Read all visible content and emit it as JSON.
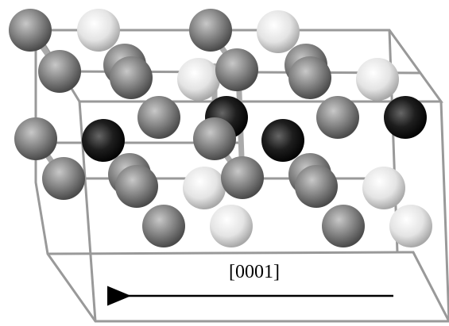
{
  "direction_label": "[0001]"
}
